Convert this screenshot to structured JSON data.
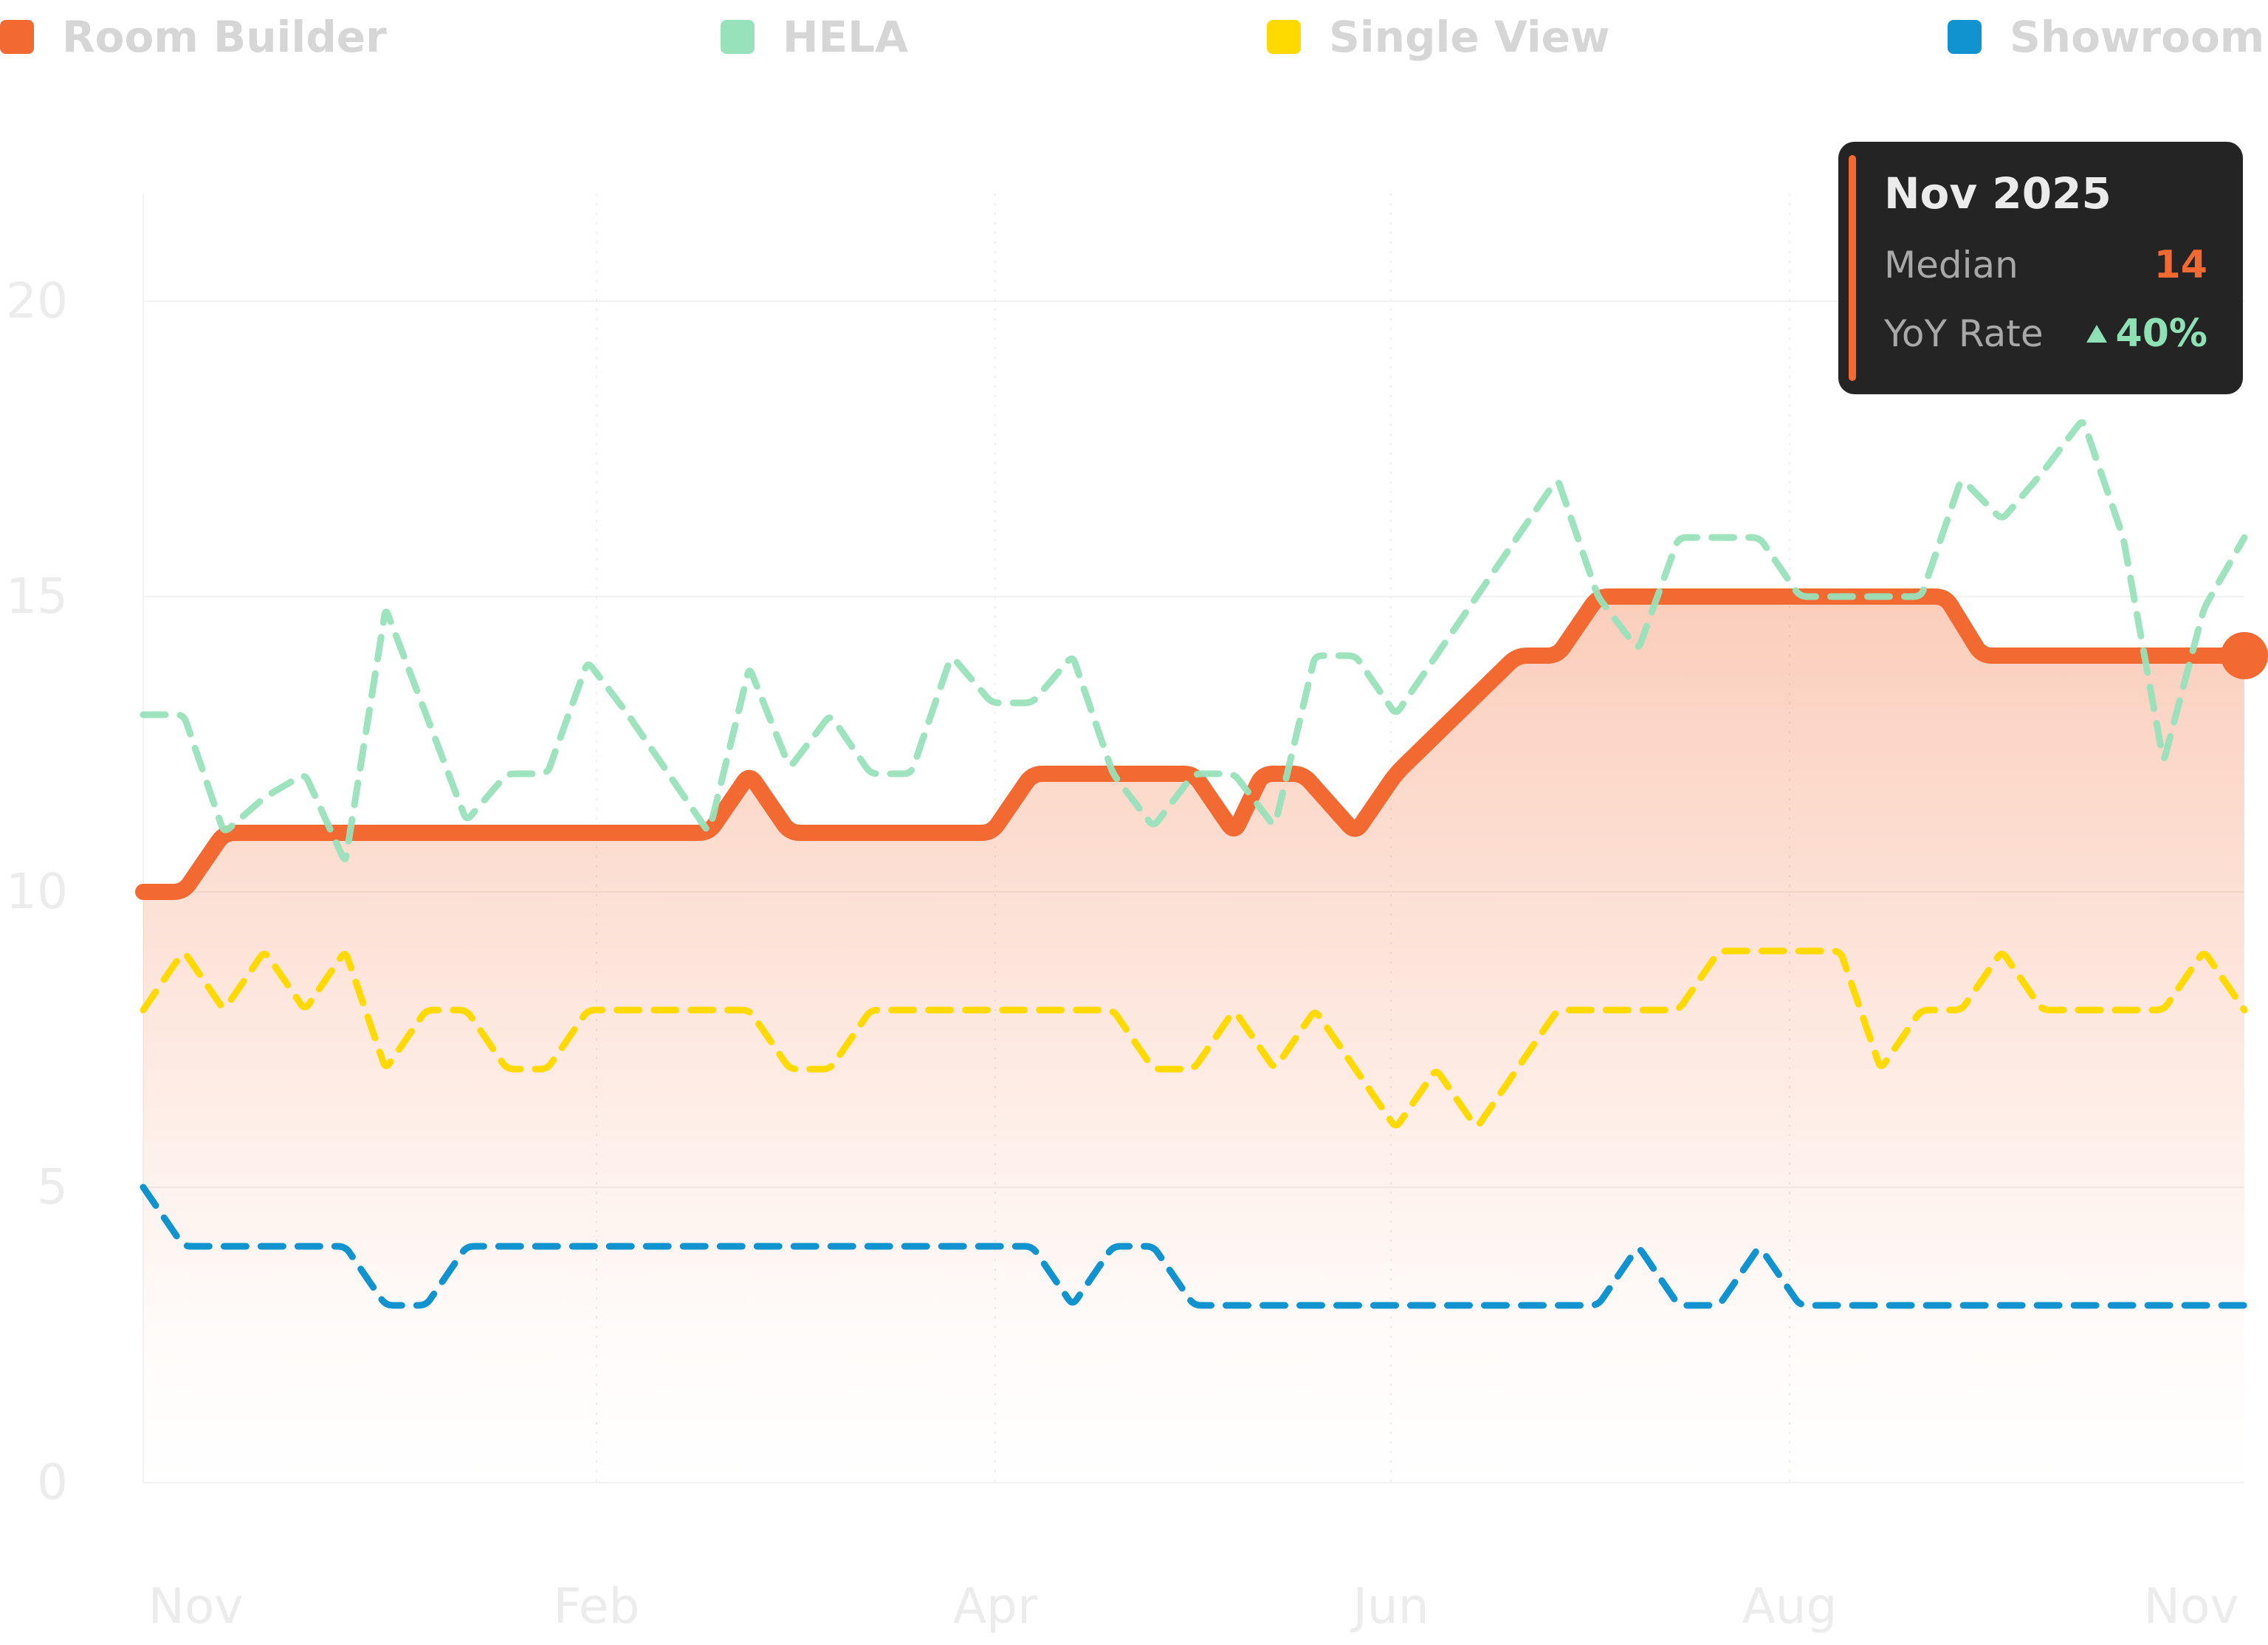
{
  "legend": [
    {
      "label": "Room Builder",
      "color": "#f26a32"
    },
    {
      "label": "HELA",
      "color": "#98e2bb"
    },
    {
      "label": "Single View",
      "color": "#ffd900"
    },
    {
      "label": "Showroom",
      "color": "#1093cf"
    }
  ],
  "tooltip": {
    "title": "Nov 2025",
    "median_label": "Median",
    "median_value": "14",
    "yoy_label": "YoY Rate",
    "yoy_value": "40%"
  },
  "chart_data": {
    "type": "line",
    "x_tick_labels": [
      "Nov",
      "Feb",
      "Apr",
      "Jun",
      "Aug",
      "Nov"
    ],
    "x_range": [
      0,
      52
    ],
    "ylim": [
      0,
      22
    ],
    "y_ticks": [
      0,
      5,
      10,
      15,
      20
    ],
    "grid": true,
    "legend_position": "top",
    "series": [
      {
        "name": "Room Builder",
        "color": "#f26a32",
        "style": "solid-area",
        "x": [
          0,
          1,
          2,
          14,
          15,
          16,
          21,
          22,
          26,
          27,
          27.7,
          28.7,
          30,
          31,
          34,
          35,
          36,
          37,
          40,
          41,
          42,
          44,
          44.6,
          45.5,
          47,
          52
        ],
        "values": [
          10,
          10,
          11,
          11,
          12,
          11,
          11,
          12,
          12,
          11,
          12,
          12,
          11,
          12,
          14,
          14,
          15,
          15,
          15,
          15,
          15,
          15,
          15,
          14,
          14,
          14
        ]
      },
      {
        "name": "HELA",
        "color": "#98e2bb",
        "style": "dashed",
        "x": [
          0,
          1,
          2,
          3,
          4,
          5,
          6,
          7,
          8,
          9,
          10,
          11,
          12,
          13,
          14,
          15,
          16,
          17,
          18,
          19,
          20,
          21,
          22,
          23,
          24,
          25,
          26,
          27,
          28,
          29,
          30,
          31,
          32,
          33,
          34,
          35,
          36,
          37,
          38,
          39,
          40,
          41,
          42,
          43,
          44,
          45,
          46,
          47,
          48,
          49,
          50,
          51,
          52
        ],
        "values": [
          13,
          13,
          11,
          11.6,
          12,
          10.5,
          14.8,
          13,
          11.2,
          12,
          12,
          13.9,
          13,
          12,
          11,
          13.8,
          12.1,
          13,
          12,
          12,
          14,
          13.2,
          13.2,
          14,
          12,
          11.1,
          12,
          12,
          11.1,
          14,
          14,
          13,
          14,
          15,
          16,
          17,
          15,
          14.1,
          16,
          16,
          16,
          15,
          15,
          15,
          15,
          17,
          16.3,
          17.1,
          18,
          16,
          12.2,
          14.8,
          16
        ]
      },
      {
        "name": "Single View",
        "color": "#ffd900",
        "style": "dashed",
        "x": [
          0,
          1,
          2,
          3,
          4,
          5,
          6,
          7,
          8,
          9,
          10,
          11,
          12,
          13,
          14,
          15,
          16,
          17,
          18,
          19,
          20,
          21,
          22,
          23,
          24,
          25,
          26,
          27,
          28,
          29,
          30,
          31,
          32,
          33,
          34,
          35,
          36,
          37,
          38,
          39,
          40,
          41,
          42,
          43,
          44,
          45,
          46,
          47,
          48,
          49,
          50,
          51,
          52
        ],
        "values": [
          8,
          9,
          8,
          9,
          8,
          9,
          7,
          8,
          8,
          7,
          7,
          8,
          8,
          8,
          8,
          8,
          7,
          7,
          8,
          8,
          8,
          8,
          8,
          8,
          8,
          7,
          7,
          8,
          7,
          8,
          7,
          6,
          7,
          6,
          7,
          8,
          8,
          8,
          8,
          9,
          9,
          9,
          9,
          7,
          8,
          8,
          9,
          8,
          8,
          8,
          8,
          9,
          8
        ]
      },
      {
        "name": "Showroom",
        "color": "#1093cf",
        "style": "dashed",
        "x": [
          0,
          1,
          2,
          3,
          4,
          5,
          6,
          7,
          8,
          9,
          10,
          11,
          12,
          13,
          14,
          15,
          16,
          17,
          18,
          19,
          20,
          21,
          22,
          23,
          24,
          25,
          26,
          27,
          28,
          29,
          30,
          31,
          32,
          33,
          34,
          35,
          36,
          37,
          38,
          39,
          40,
          41,
          42,
          43,
          44,
          45,
          46,
          47,
          48,
          49,
          50,
          51,
          52
        ],
        "values": [
          5,
          4,
          4,
          4,
          4,
          4,
          3,
          3,
          4,
          4,
          4,
          4,
          4,
          4,
          4,
          4,
          4,
          4,
          4,
          4,
          4,
          4,
          4,
          3,
          4,
          4,
          3,
          3,
          3,
          3,
          3,
          3,
          3,
          3,
          3,
          3,
          3,
          4,
          3,
          3,
          4,
          3,
          3,
          3,
          3,
          3,
          3,
          3,
          3,
          3,
          3,
          3,
          3
        ]
      }
    ],
    "highlight": {
      "series": "Room Builder",
      "x": 52,
      "value": 14
    }
  }
}
